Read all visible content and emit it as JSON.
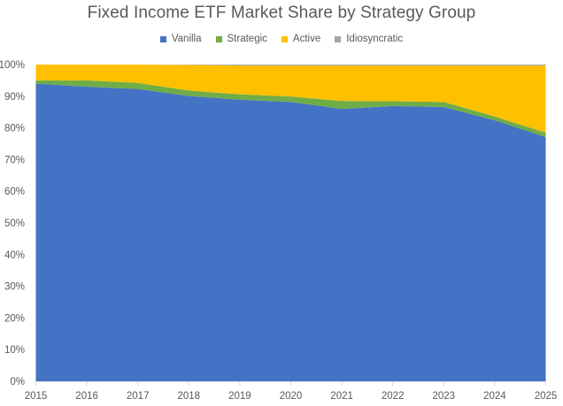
{
  "chart_data": {
    "type": "area",
    "stacked": true,
    "percent": true,
    "title": "Fixed Income ETF Market Share by Strategy Group",
    "xlabel": "",
    "ylabel": "",
    "categories": [
      "2015",
      "2016",
      "2017",
      "2018",
      "2019",
      "2020",
      "2021",
      "2022",
      "2023",
      "2024",
      "2025"
    ],
    "series": [
      {
        "name": "Vanilla",
        "color": "#4472C4",
        "values": [
          94.0,
          93.0,
          92.3,
          90.1,
          88.9,
          88.2,
          86.0,
          86.9,
          86.6,
          82.4,
          77.1
        ]
      },
      {
        "name": "Strategic",
        "color": "#70AD47",
        "values": [
          1.0,
          2.0,
          1.9,
          1.7,
          1.7,
          1.7,
          2.5,
          1.5,
          1.6,
          1.2,
          1.4
        ]
      },
      {
        "name": "Active",
        "color": "#FFC000",
        "values": [
          5.0,
          5.0,
          5.8,
          8.1,
          9.1,
          9.8,
          11.2,
          11.3,
          11.5,
          16.1,
          21.2
        ]
      },
      {
        "name": "Idiosyncratic",
        "color": "#A5A5A5",
        "values": [
          0.0,
          0.0,
          0.0,
          0.1,
          0.3,
          0.3,
          0.3,
          0.3,
          0.3,
          0.3,
          0.3
        ]
      }
    ],
    "y_ticks": [
      "0%",
      "10%",
      "20%",
      "30%",
      "40%",
      "50%",
      "60%",
      "70%",
      "80%",
      "90%",
      "100%"
    ],
    "ylim": [
      0,
      100
    ],
    "grid": false,
    "legend_position": "top"
  },
  "legend": [
    {
      "label": "Vanilla",
      "color": "#4472C4"
    },
    {
      "label": "Strategic",
      "color": "#70AD47"
    },
    {
      "label": "Active",
      "color": "#FFC000"
    },
    {
      "label": "Idiosyncratic",
      "color": "#A5A5A5"
    }
  ]
}
